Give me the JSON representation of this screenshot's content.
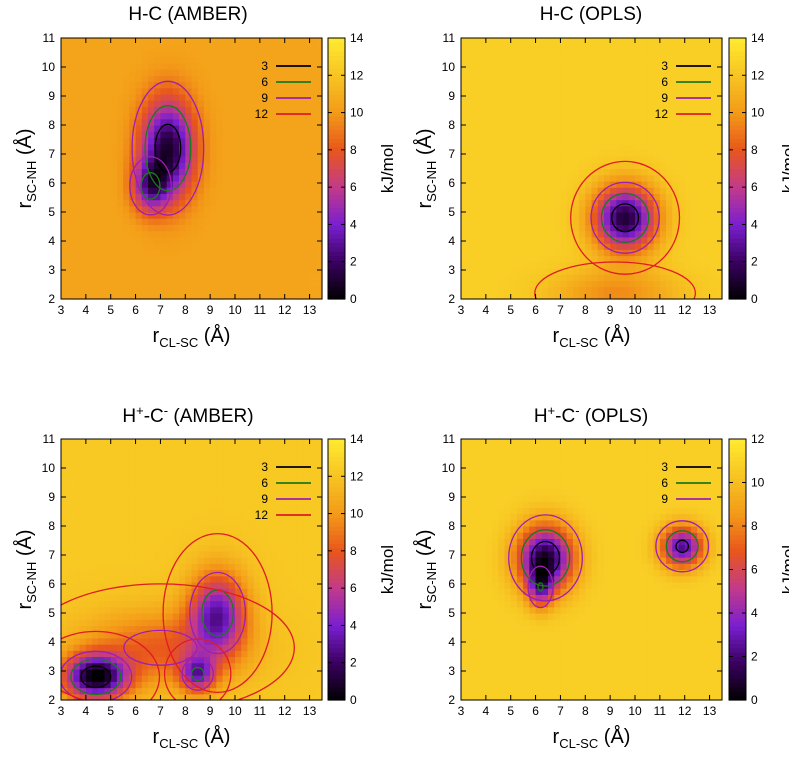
{
  "figure": {
    "xlabel_main": "r",
    "xlabel_sub": "CL-SC",
    "xlabel_unit": "(Å)",
    "ylabel_main": "r",
    "ylabel_sub": "SC-NH",
    "ylabel_unit": "(Å)",
    "colorbar_label": "kJ/mol",
    "colormap": [
      "#000000",
      "#3a0060",
      "#7a1fd0",
      "#c23a8a",
      "#e8561c",
      "#f39a18",
      "#f7c422",
      "#ffea30"
    ],
    "contour_colors": {
      "3": "#000000",
      "6": "#1a7a1a",
      "9": "#9e1fb0",
      "12": "#e01b24"
    }
  },
  "chart_data": [
    {
      "type": "heatmap",
      "title": "H-C (AMBER)",
      "title_main": "H-C",
      "title_sup1": "",
      "title_mid": "",
      "title_sup2": "",
      "title_tail": "(AMBER)",
      "xlim": [
        3,
        13.5
      ],
      "ylim": [
        2,
        11
      ],
      "x_ticks": [
        3,
        4,
        5,
        6,
        7,
        8,
        9,
        10,
        11,
        12,
        13
      ],
      "y_ticks": [
        2,
        3,
        4,
        5,
        6,
        7,
        8,
        9,
        10,
        11
      ],
      "colorbar_range": [
        0,
        14
      ],
      "colorbar_ticks": [
        0,
        2,
        4,
        6,
        8,
        10,
        12,
        14
      ],
      "background_energy": 10.5,
      "contour_levels": [
        "3",
        "6",
        "9",
        "12"
      ],
      "contour_legend": [
        {
          "label": "3",
          "color": "#000000"
        },
        {
          "label": "6",
          "color": "#1a7a1a"
        },
        {
          "label": "9",
          "color": "#9e1fb0"
        },
        {
          "label": "12",
          "color": "#e01b24"
        }
      ],
      "basins": [
        {
          "x": 7.3,
          "y": 7.2,
          "depth": 9.5,
          "sx": 0.75,
          "sy": 1.2
        },
        {
          "x": 6.6,
          "y": 5.9,
          "depth": 6.0,
          "sx": 0.5,
          "sy": 0.6
        }
      ]
    },
    {
      "type": "heatmap",
      "title": "H-C (OPLS)",
      "title_main": "H-C",
      "title_sup1": "",
      "title_mid": "",
      "title_sup2": "",
      "title_tail": "(OPLS)",
      "xlim": [
        3,
        13.5
      ],
      "ylim": [
        2,
        11
      ],
      "x_ticks": [
        3,
        4,
        5,
        6,
        7,
        8,
        9,
        10,
        11,
        12,
        13
      ],
      "y_ticks": [
        2,
        3,
        4,
        5,
        6,
        7,
        8,
        9,
        10,
        11
      ],
      "colorbar_range": [
        0,
        14
      ],
      "colorbar_ticks": [
        0,
        2,
        4,
        6,
        8,
        10,
        12,
        14
      ],
      "background_energy": 12.6,
      "contour_levels": [
        "3",
        "6",
        "9",
        "12"
      ],
      "contour_legend": [
        {
          "label": "3",
          "color": "#000000"
        },
        {
          "label": "6",
          "color": "#1a7a1a"
        },
        {
          "label": "9",
          "color": "#9e1fb0"
        },
        {
          "label": "12",
          "color": "#e01b24"
        }
      ],
      "basins": [
        {
          "x": 9.6,
          "y": 4.8,
          "depth": 11.5,
          "sx": 0.9,
          "sy": 0.8
        },
        {
          "x": 9.2,
          "y": 2.2,
          "depth": 3.0,
          "sx": 1.8,
          "sy": 0.6
        }
      ]
    },
    {
      "type": "heatmap",
      "title": "H+-C- (AMBER)",
      "title_main": "H",
      "title_sup1": "+",
      "title_mid": "-C",
      "title_sup2": "-",
      "title_tail": "(AMBER)",
      "xlim": [
        3,
        13.5
      ],
      "ylim": [
        2,
        11
      ],
      "x_ticks": [
        3,
        4,
        5,
        6,
        7,
        8,
        9,
        10,
        11,
        12,
        13
      ],
      "y_ticks": [
        2,
        3,
        4,
        5,
        6,
        7,
        8,
        9,
        10,
        11
      ],
      "colorbar_range": [
        0,
        14
      ],
      "colorbar_ticks": [
        0,
        2,
        4,
        6,
        8,
        10,
        12,
        14
      ],
      "background_energy": 12.2,
      "contour_levels": [
        "3",
        "6",
        "9",
        "12"
      ],
      "contour_legend": [
        {
          "label": "3",
          "color": "#000000"
        },
        {
          "label": "6",
          "color": "#1a7a1a"
        },
        {
          "label": "9",
          "color": "#9e1fb0"
        },
        {
          "label": "12",
          "color": "#e01b24"
        }
      ],
      "basins": [
        {
          "x": 4.4,
          "y": 2.8,
          "depth": 11.5,
          "sx": 0.9,
          "sy": 0.55
        },
        {
          "x": 9.3,
          "y": 5.0,
          "depth": 8.5,
          "sx": 0.8,
          "sy": 1.0
        },
        {
          "x": 8.5,
          "y": 2.9,
          "depth": 7.0,
          "sx": 0.5,
          "sy": 0.45
        },
        {
          "x": 7.0,
          "y": 3.8,
          "depth": 4.0,
          "sx": 2.2,
          "sy": 0.9
        }
      ]
    },
    {
      "type": "heatmap",
      "title": "H+-C- (OPLS)",
      "title_main": "H",
      "title_sup1": "+",
      "title_mid": "-C",
      "title_sup2": "-",
      "title_tail": "(OPLS)",
      "xlim": [
        3,
        13.5
      ],
      "ylim": [
        2,
        11
      ],
      "x_ticks": [
        3,
        4,
        5,
        6,
        7,
        8,
        9,
        10,
        11,
        12,
        13
      ],
      "y_ticks": [
        2,
        3,
        4,
        5,
        6,
        7,
        8,
        9,
        10,
        11
      ],
      "colorbar_range": [
        0,
        12
      ],
      "colorbar_ticks": [
        0,
        2,
        4,
        6,
        8,
        10,
        12
      ],
      "background_energy": 10.8,
      "contour_levels": [
        "3",
        "6",
        "9"
      ],
      "contour_legend": [
        {
          "label": "3",
          "color": "#000000"
        },
        {
          "label": "6",
          "color": "#1a7a1a"
        },
        {
          "label": "9",
          "color": "#9e1fb0"
        }
      ],
      "basins": [
        {
          "x": 6.4,
          "y": 6.9,
          "depth": 10.0,
          "sx": 0.8,
          "sy": 0.8
        },
        {
          "x": 11.9,
          "y": 7.3,
          "depth": 8.5,
          "sx": 0.6,
          "sy": 0.5
        },
        {
          "x": 6.2,
          "y": 5.9,
          "depth": 5.0,
          "sx": 0.35,
          "sy": 0.5
        }
      ]
    }
  ]
}
